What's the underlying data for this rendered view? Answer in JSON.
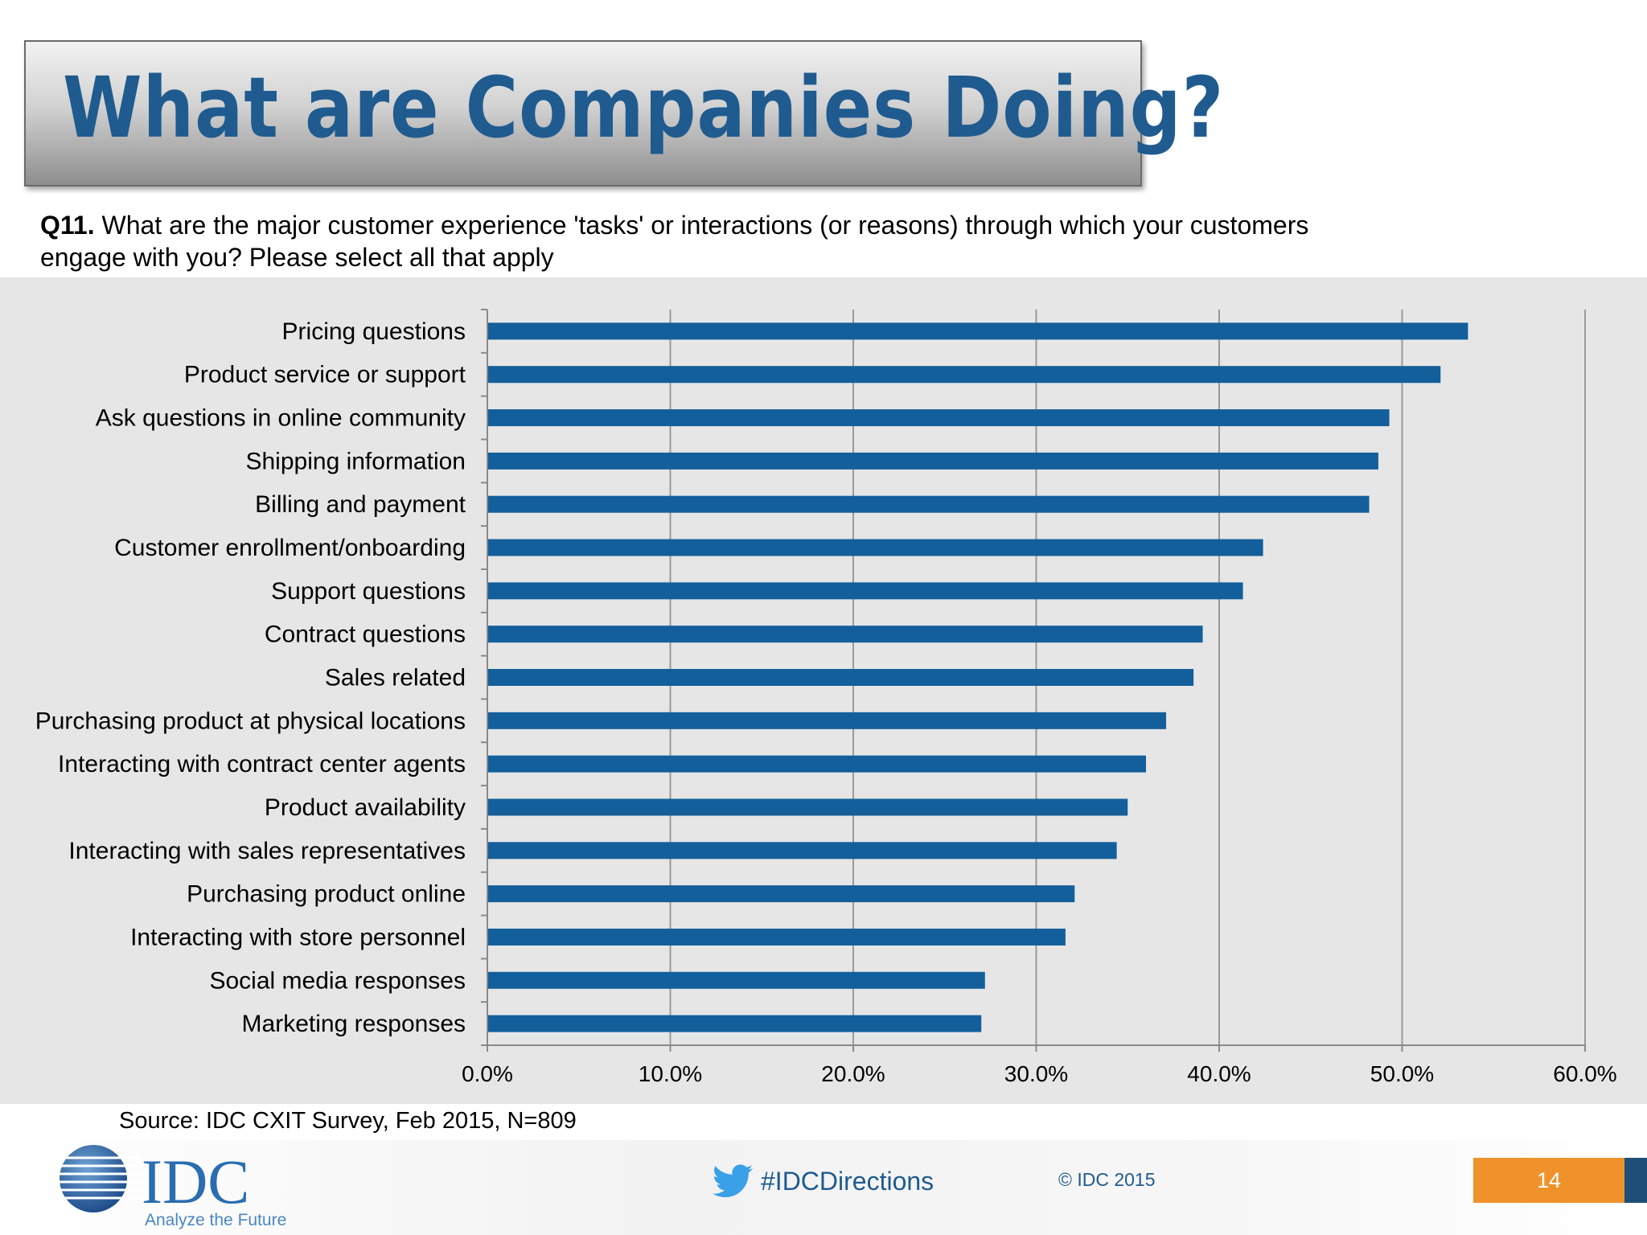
{
  "slide": {
    "title": "What are Companies Doing?",
    "question_label": "Q11.",
    "question_text": " What are the major customer experience 'tasks' or interactions (or reasons) through which your customers engage with you?  Please select all that apply",
    "source": "Source: IDC CXIT Survey, Feb 2015, N=809"
  },
  "footer": {
    "logo_text": "IDC",
    "logo_tagline": "Analyze the Future",
    "hashtag": "#IDCDirections",
    "copyright": "© IDC 2015",
    "page_number": "14"
  },
  "colors": {
    "bar": "#135f9b",
    "title": "#1f5b8f",
    "accent_orange": "#f0922b"
  },
  "chart_data": {
    "type": "bar",
    "orientation": "horizontal",
    "categories": [
      "Pricing questions",
      "Product service or support",
      "Ask questions in online community",
      "Shipping information",
      "Billing and payment",
      "Customer enrollment/onboarding",
      "Support questions",
      "Contract questions",
      "Sales related",
      "Purchasing product at physical locations",
      "Interacting with contract center agents",
      "Product availability",
      "Interacting with sales representatives",
      "Purchasing product online",
      "Interacting with store personnel",
      "Social media responses",
      "Marketing responses"
    ],
    "values": [
      53.6,
      52.1,
      49.3,
      48.7,
      48.2,
      42.4,
      41.3,
      39.1,
      38.6,
      37.1,
      36.0,
      35.0,
      34.4,
      32.1,
      31.6,
      27.2,
      27.0
    ],
    "xlim": [
      0,
      60
    ],
    "xticks": [
      "0.0%",
      "10.0%",
      "20.0%",
      "30.0%",
      "40.0%",
      "50.0%",
      "60.0%"
    ],
    "grid": "vertical",
    "legend": "none",
    "xlabel": "",
    "ylabel": ""
  }
}
